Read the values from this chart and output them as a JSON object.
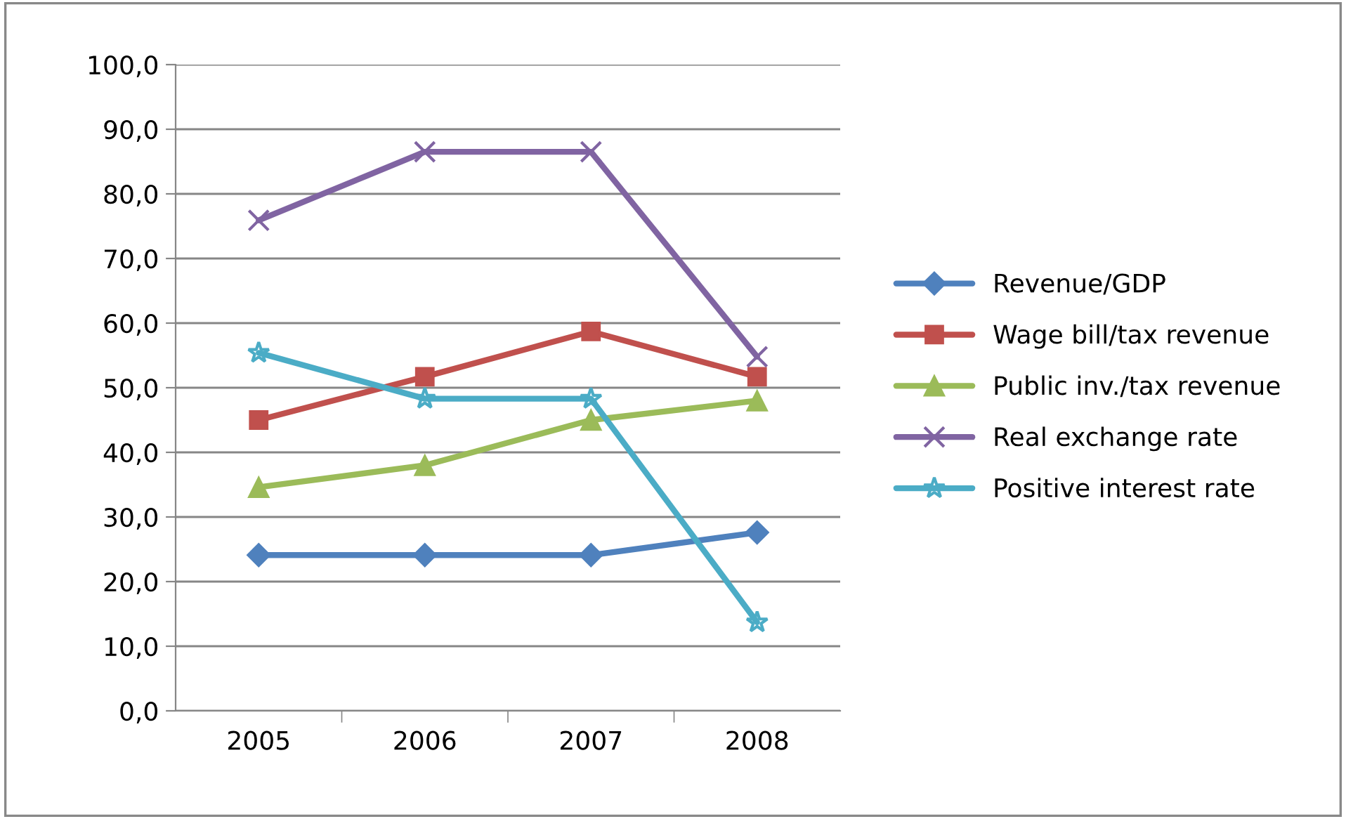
{
  "chart_data": {
    "type": "line",
    "categories": [
      "2005",
      "2006",
      "2007",
      "2008"
    ],
    "series": [
      {
        "name": "Revenue/GDP",
        "color": "#4f81bd",
        "marker": "diamond",
        "values": [
          24.1,
          24.1,
          24.1,
          27.6
        ]
      },
      {
        "name": "Wage bill/tax revenue",
        "color": "#c0504d",
        "marker": "square",
        "values": [
          45.0,
          51.7,
          58.7,
          51.7
        ]
      },
      {
        "name": "Public inv./tax revenue",
        "color": "#9bbb59",
        "marker": "triangle",
        "values": [
          34.6,
          38.0,
          45.0,
          48.0
        ]
      },
      {
        "name": "Real exchange rate",
        "color": "#8064a2",
        "marker": "cross",
        "values": [
          75.9,
          86.5,
          86.5,
          54.8
        ]
      },
      {
        "name": "Positive interest rate",
        "color": "#4bacc6",
        "marker": "star",
        "values": [
          55.4,
          48.3,
          48.3,
          13.7
        ]
      }
    ],
    "ylim": [
      0,
      100
    ],
    "yticks": [
      {
        "value": 0,
        "label": "0,0"
      },
      {
        "value": 10,
        "label": "10,0"
      },
      {
        "value": 20,
        "label": "20,0"
      },
      {
        "value": 30,
        "label": "30,0"
      },
      {
        "value": 40,
        "label": "40,0"
      },
      {
        "value": 50,
        "label": "50,0"
      },
      {
        "value": 60,
        "label": "60,0"
      },
      {
        "value": 70,
        "label": "70,0"
      },
      {
        "value": 80,
        "label": "80,0"
      },
      {
        "value": 90,
        "label": "90,0"
      },
      {
        "value": 100,
        "label": "100,0"
      }
    ],
    "grid": "y",
    "legend": "right",
    "line_style": "solid"
  }
}
